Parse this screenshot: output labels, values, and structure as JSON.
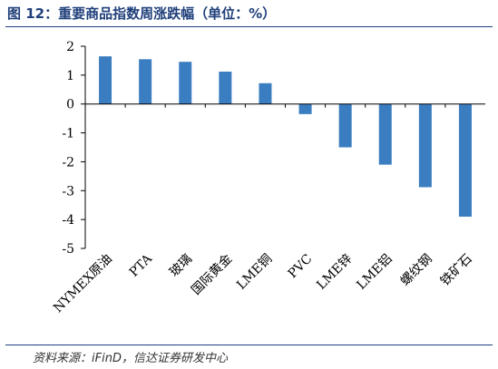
{
  "header": {
    "title": "图 12：重要商品指数周涨跌幅（单位：%）"
  },
  "footer": {
    "source": "资料来源：iFinD，信达证券研发中心"
  },
  "chart_data": {
    "type": "bar",
    "categories": [
      "NYMEX原油",
      "PTA",
      "玻璃",
      "国际黄金",
      "LME铜",
      "PVC",
      "LME锌",
      "LME铝",
      "螺纹钢",
      "铁矿石"
    ],
    "values": [
      1.65,
      1.55,
      1.46,
      1.12,
      0.72,
      -0.35,
      -1.5,
      -2.1,
      -2.88,
      -3.9
    ],
    "ylim": [
      -5,
      2
    ],
    "yticks": [
      2,
      1,
      0,
      -1,
      -2,
      -3,
      -4,
      -5
    ],
    "bar_color": "#3a7dc0",
    "grid": false,
    "legend": "none"
  }
}
